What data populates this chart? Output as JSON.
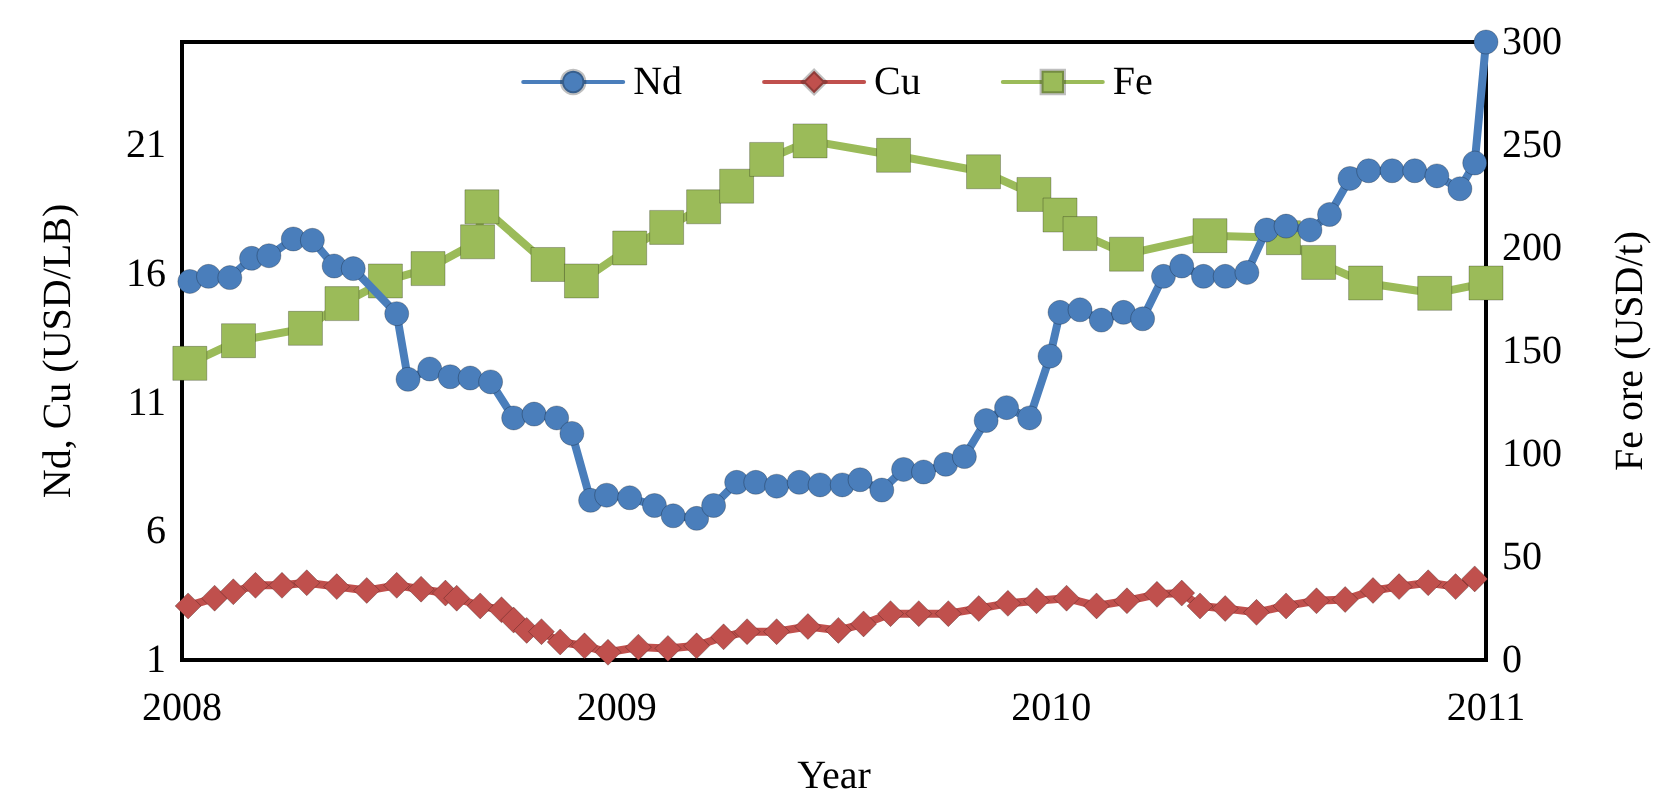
{
  "chart_data": {
    "type": "line",
    "xlabel": "Year",
    "ylabel": "Nd, Cu (USD/LB)",
    "y2label": "Fe ore (USD/t)",
    "xlim": [
      2008,
      2011
    ],
    "xticks": [
      2008,
      2009,
      2010,
      2011
    ],
    "ylim": [
      1,
      25
    ],
    "yticks": [
      1,
      6,
      11,
      16,
      21
    ],
    "y2lim": [
      0,
      300
    ],
    "y2ticks": [
      0,
      50,
      100,
      150,
      200,
      250,
      300
    ],
    "legend": "top",
    "grid": false,
    "line_style": "solid",
    "series": [
      {
        "name": "Nd",
        "color": "#4a7ebb",
        "marker": "circle",
        "x": [
          2008.018,
          2008.061,
          2008.11,
          2008.16,
          2008.2,
          2008.256,
          2008.3,
          2008.35,
          2008.394,
          2008.494,
          2008.52,
          2008.57,
          2008.617,
          2008.663,
          2008.71,
          2008.763,
          2008.81,
          2008.862,
          2008.897,
          2008.94,
          2008.977,
          2009.03,
          2009.087,
          2009.13,
          2009.184,
          2009.223,
          2009.276,
          2009.32,
          2009.368,
          2009.42,
          2009.468,
          2009.519,
          2009.56,
          2009.61,
          2009.66,
          2009.706,
          2009.757,
          2009.8,
          2009.85,
          2009.897,
          2009.95,
          2009.997,
          2010.02,
          2010.066,
          2010.115,
          2010.166,
          2010.21,
          2010.258,
          2010.3,
          2010.35,
          2010.4,
          2010.45,
          2010.495,
          2010.54,
          2010.595,
          2010.64,
          2010.687,
          2010.73,
          2010.784,
          2010.836,
          2010.887,
          2010.94,
          2010.974,
          2011
        ],
        "values": [
          15.7,
          15.9,
          15.85,
          16.6,
          16.7,
          17.35,
          17.3,
          16.3,
          16.2,
          14.45,
          11.9,
          12.3,
          12.0,
          11.95,
          11.8,
          10.4,
          10.55,
          10.4,
          9.8,
          7.2,
          7.4,
          7.3,
          7.0,
          6.6,
          6.5,
          7.0,
          7.9,
          7.9,
          7.75,
          7.9,
          7.8,
          7.8,
          8.0,
          7.6,
          8.4,
          8.3,
          8.6,
          8.9,
          10.3,
          10.8,
          10.4,
          12.8,
          14.5,
          14.6,
          14.2,
          14.5,
          14.25,
          15.9,
          16.3,
          15.9,
          15.9,
          16.05,
          17.7,
          17.85,
          17.7,
          18.3,
          19.7,
          20.0,
          20.0,
          20.0,
          19.8,
          19.3,
          20.3,
          25.0
        ]
      },
      {
        "name": "Cu",
        "color": "#c0504d",
        "marker": "diamond",
        "x": [
          2008.014,
          2008.075,
          2008.118,
          2008.169,
          2008.23,
          2008.287,
          2008.356,
          2008.425,
          2008.494,
          2008.55,
          2008.606,
          2008.632,
          2008.686,
          2008.735,
          2008.763,
          2008.793,
          2008.827,
          2008.87,
          2008.926,
          2008.98,
          2009.05,
          2009.118,
          2009.184,
          2009.246,
          2009.3,
          2009.368,
          2009.44,
          2009.51,
          2009.568,
          2009.63,
          2009.695,
          2009.763,
          2009.833,
          2009.9,
          2009.966,
          2010.035,
          2010.104,
          2010.174,
          2010.243,
          2010.3,
          2010.342,
          2010.4,
          2010.472,
          2010.54,
          2010.61,
          2010.676,
          2010.74,
          2010.8,
          2010.867,
          2010.93,
          2010.974
        ],
        "values": [
          3.1,
          3.4,
          3.65,
          3.9,
          3.9,
          4.0,
          3.85,
          3.7,
          3.9,
          3.75,
          3.6,
          3.4,
          3.1,
          2.95,
          2.55,
          2.15,
          2.1,
          1.7,
          1.55,
          1.3,
          1.5,
          1.45,
          1.55,
          1.9,
          2.1,
          2.1,
          2.3,
          2.15,
          2.4,
          2.8,
          2.8,
          2.8,
          3.0,
          3.2,
          3.3,
          3.4,
          3.1,
          3.3,
          3.55,
          3.6,
          3.1,
          3.0,
          2.85,
          3.1,
          3.3,
          3.35,
          3.7,
          3.85,
          4.0,
          3.85,
          4.15
        ]
      },
      {
        "name": "Fe",
        "color": "#9bbb59",
        "marker": "square",
        "axis": "y2",
        "x": [
          2008.018,
          2008.13,
          2008.284,
          2008.368,
          2008.468,
          2008.566,
          2008.68,
          2008.69,
          2008.842,
          2008.919,
          2009.03,
          2009.115,
          2009.2,
          2009.276,
          2009.345,
          2009.445,
          2009.637,
          2009.844,
          2009.96,
          2010.02,
          2010.066,
          2010.173,
          2010.365,
          2010.534,
          2010.615,
          2010.723,
          2010.882,
          2011
        ],
        "values": [
          144,
          155,
          161,
          173,
          184,
          190,
          203,
          220,
          192,
          184,
          200,
          210,
          220,
          230,
          243,
          252,
          245,
          237,
          226,
          216,
          207,
          197,
          206,
          205,
          193,
          183,
          178,
          183
        ]
      }
    ]
  }
}
